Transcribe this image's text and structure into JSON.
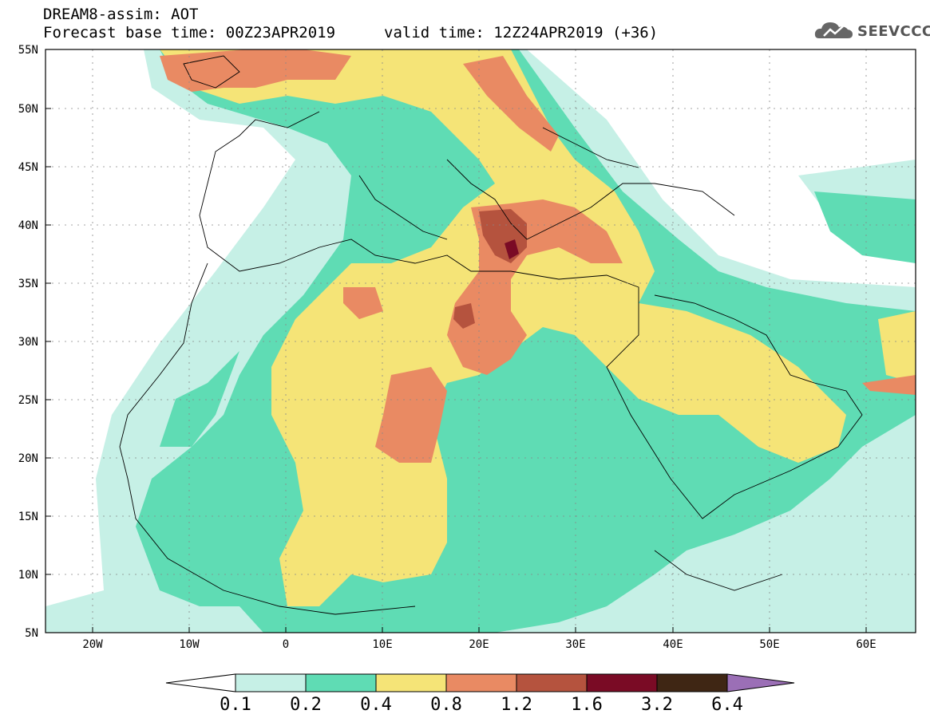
{
  "header": {
    "title": "DREAM8-assim: AOT",
    "base_time": "Forecast base time: 00Z23APR2019",
    "valid_time": "valid time: 12Z24APR2019 (+36)"
  },
  "logo": {
    "text": "SEEVCCC",
    "icon": "cloud-logo-icon"
  },
  "axes": {
    "lat_labels": [
      "55N",
      "50N",
      "45N",
      "40N",
      "35N",
      "30N",
      "25N",
      "20N",
      "15N",
      "10N",
      "5N"
    ],
    "lon_labels": [
      "20W",
      "10W",
      "0",
      "10E",
      "20E",
      "30E",
      "40E",
      "50E",
      "60E"
    ],
    "lat_range": [
      5,
      55
    ],
    "lon_range": [
      -25,
      65
    ]
  },
  "colorbar": {
    "labels": [
      "0.1",
      "0.2",
      "0.4",
      "0.8",
      "1.2",
      "1.6",
      "3.2",
      "6.4"
    ],
    "colors": [
      "#ffffff",
      "#c6f0e6",
      "#5fdcb4",
      "#f5e477",
      "#e98a63",
      "#b5533e",
      "#7a0b25",
      "#3f2614",
      "#9b6fb6"
    ]
  },
  "colors": {
    "c01": "#c6f0e6",
    "c02": "#5fdcb4",
    "c04": "#f5e477",
    "c08": "#e98a63",
    "c12": "#b5533e",
    "c16": "#7a0b25"
  }
}
